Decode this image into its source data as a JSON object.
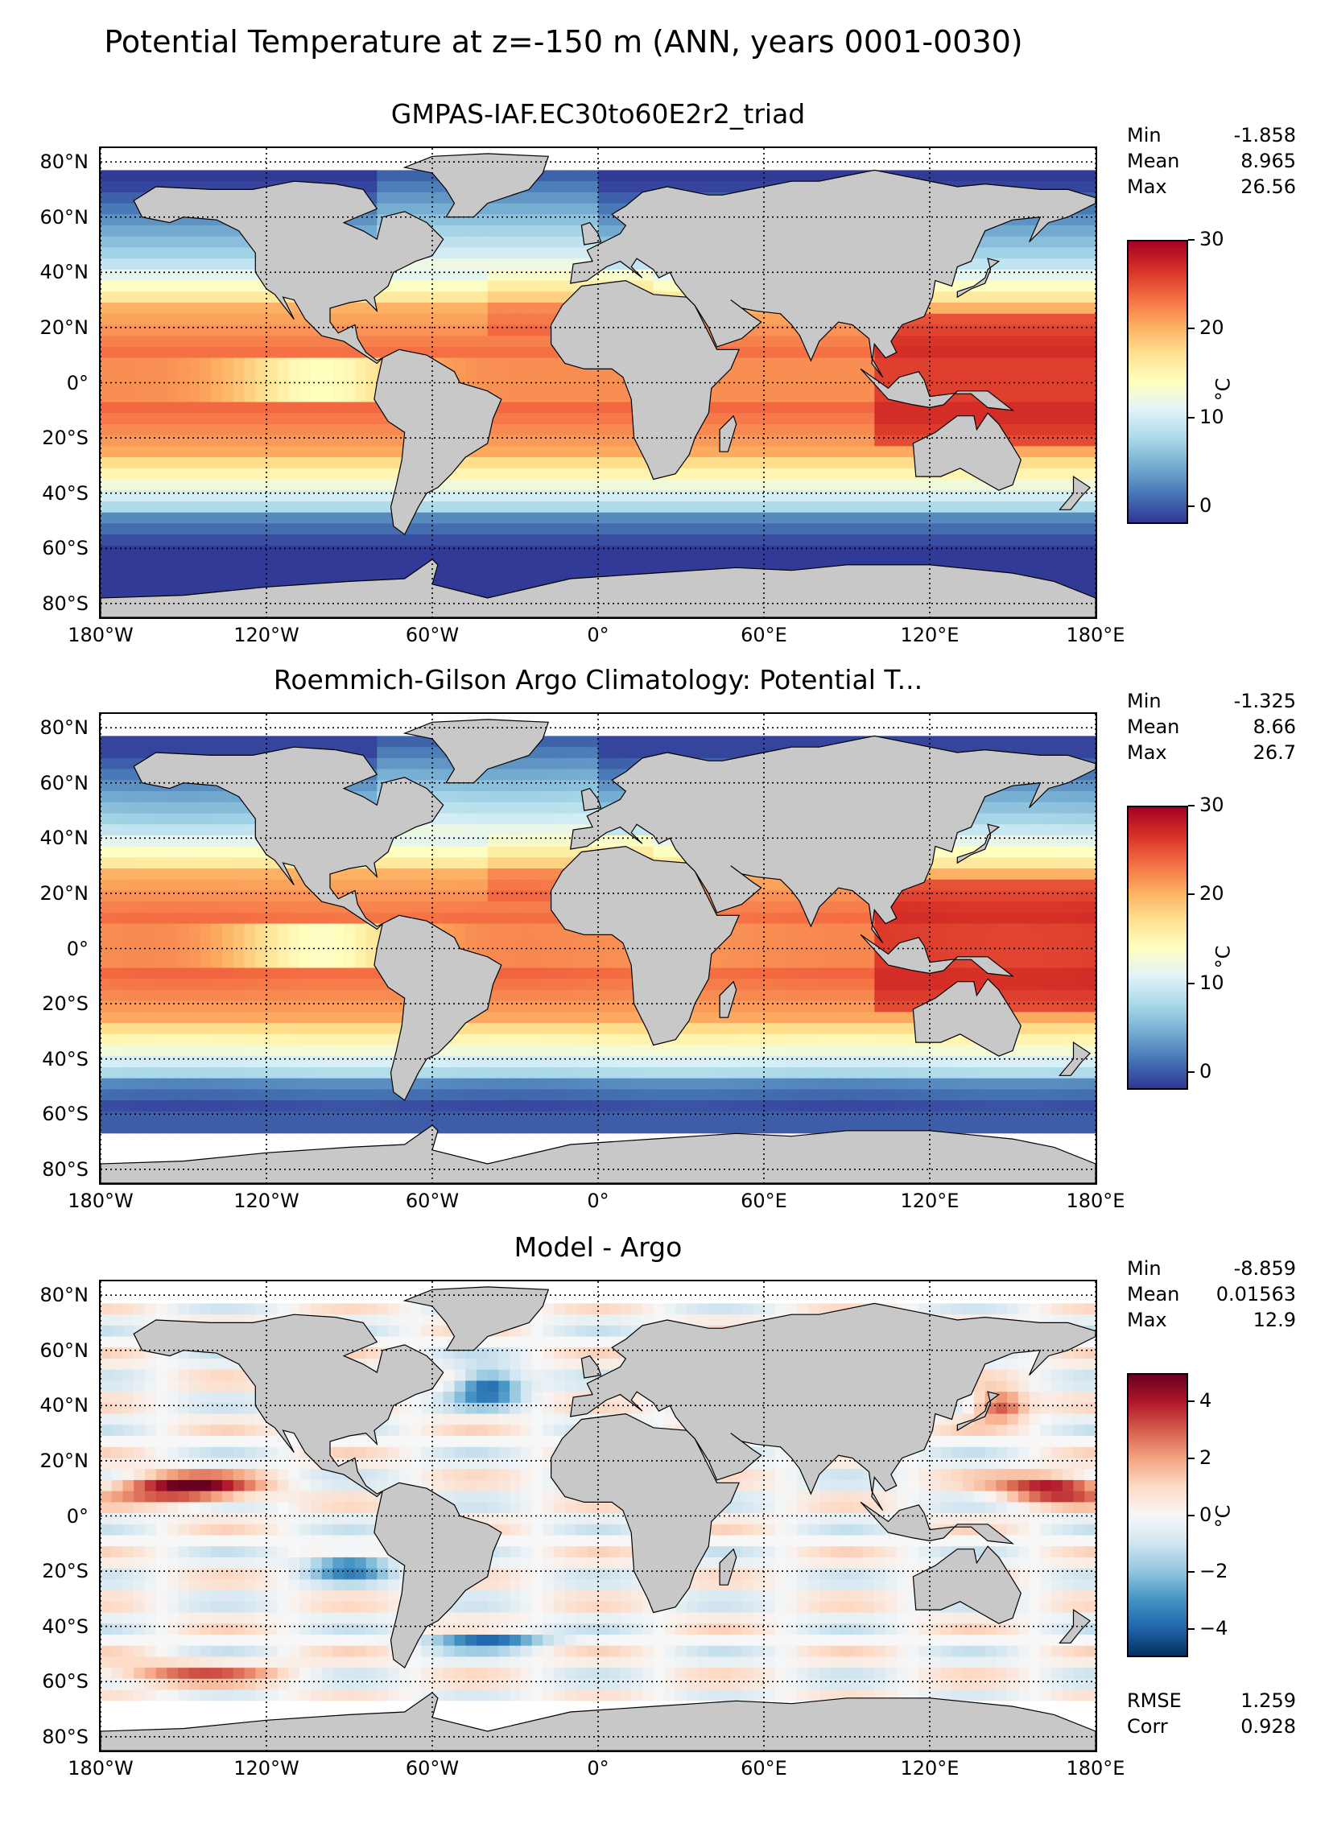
{
  "figure": {
    "suptitle": "Potential Temperature at z=-150 m (ANN, years 0001-0030)"
  },
  "colors": {
    "land": "#c8c8c8",
    "nodata": "#ffffff",
    "coast": "#000000",
    "grid": "#000000"
  },
  "axes": {
    "lat_ticks": [
      "80°N",
      "60°N",
      "40°N",
      "20°N",
      "0°",
      "20°S",
      "40°S",
      "60°S",
      "80°S"
    ],
    "lat_values": [
      80,
      60,
      40,
      20,
      0,
      -20,
      -40,
      -60,
      -80
    ],
    "lon_ticks": [
      "180°W",
      "120°W",
      "60°W",
      "0°",
      "60°E",
      "120°E",
      "180°E"
    ],
    "lon_values": [
      -180,
      -120,
      -60,
      0,
      60,
      120,
      180
    ],
    "lat_range": [
      -85,
      85
    ],
    "lon_range": [
      -180,
      180
    ],
    "grid": "dotted"
  },
  "panels": [
    {
      "title": "GMPAS-IAF.EC30to60E2r2_triad",
      "stats": [
        {
          "label": "Min",
          "value": "-1.858"
        },
        {
          "label": "Mean",
          "value": "8.965"
        },
        {
          "label": "Max",
          "value": "26.56"
        }
      ],
      "colorbar": {
        "ticks": [
          "30",
          "20",
          "10",
          "0"
        ],
        "tick_values": [
          30,
          20,
          10,
          0
        ],
        "range": [
          -2,
          30
        ],
        "unit": "°C",
        "cmap": "RdYlBu_r"
      },
      "field": "model",
      "south_cutoff": -85
    },
    {
      "title": "Roemmich-Gilson Argo Climatology: Potential T...",
      "stats": [
        {
          "label": "Min",
          "value": "-1.325"
        },
        {
          "label": "Mean",
          "value": "8.66"
        },
        {
          "label": "Max",
          "value": "26.7"
        }
      ],
      "colorbar": {
        "ticks": [
          "30",
          "20",
          "10",
          "0"
        ],
        "tick_values": [
          30,
          20,
          10,
          0
        ],
        "range": [
          -2,
          30
        ],
        "unit": "°C",
        "cmap": "RdYlBu_r"
      },
      "field": "obs",
      "south_cutoff": -65
    },
    {
      "title": "Model - Argo",
      "stats": [
        {
          "label": "Min",
          "value": "-8.859"
        },
        {
          "label": "Mean",
          "value": "0.01563"
        },
        {
          "label": "Max",
          "value": "12.9"
        }
      ],
      "extra_stats": [
        {
          "label": "RMSE",
          "value": "1.259"
        },
        {
          "label": "Corr",
          "value": "0.928"
        }
      ],
      "colorbar": {
        "ticks": [
          "4",
          "2",
          "0",
          "−2",
          "−4"
        ],
        "tick_values": [
          4,
          2,
          0,
          -2,
          -4
        ],
        "range": [
          -5,
          5
        ],
        "unit": "°C",
        "cmap": "RdBu_r"
      },
      "field": "diff",
      "south_cutoff": -65
    }
  ]
}
